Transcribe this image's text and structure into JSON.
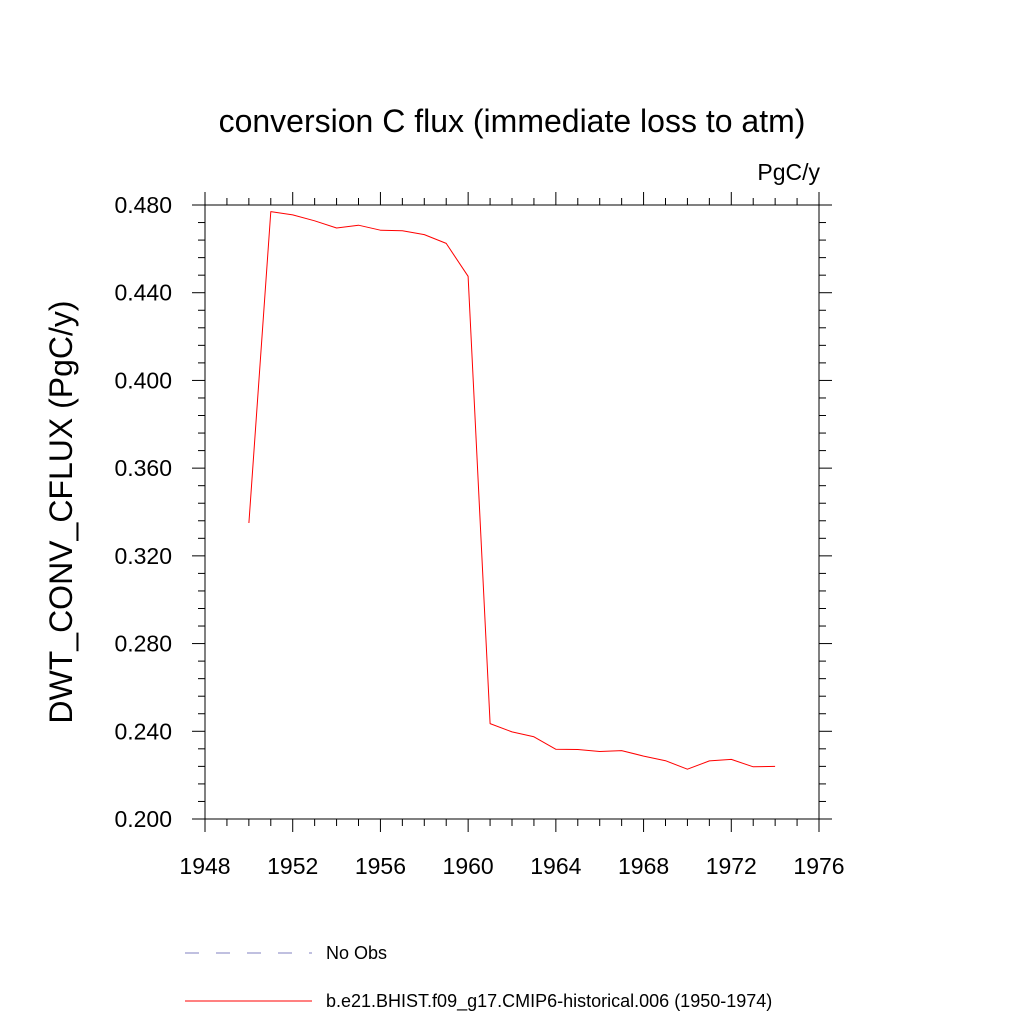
{
  "chart_data": {
    "type": "line",
    "title": "conversion C flux (immediate loss to atm)",
    "units": "PgC/y",
    "xlabel": "",
    "ylabel": "DWT_CONV_CFLUX  (PgC/y)",
    "xlim": [
      1948,
      1976
    ],
    "ylim": [
      0.2,
      0.48
    ],
    "xticks": [
      "1948",
      "1952",
      "1956",
      "1960",
      "1964",
      "1968",
      "1972",
      "1976"
    ],
    "yticks": [
      "0.200",
      "0.240",
      "0.280",
      "0.320",
      "0.360",
      "0.400",
      "0.440",
      "0.480"
    ],
    "series": [
      {
        "name": "b.e21.BHIST.f09_g17.CMIP6-historical.006 (1950-1974)",
        "color": "#ff0000",
        "style": "solid",
        "x": [
          1950,
          1951,
          1952,
          1953,
          1954,
          1955,
          1956,
          1957,
          1958,
          1959,
          1960,
          1961,
          1962,
          1963,
          1964,
          1965,
          1966,
          1967,
          1968,
          1969,
          1970,
          1971,
          1972,
          1973,
          1974
        ],
        "values": [
          0.335,
          0.477,
          0.4755,
          0.4728,
          0.4695,
          0.4708,
          0.4685,
          0.4683,
          0.4665,
          0.4625,
          0.4475,
          0.2435,
          0.2397,
          0.2375,
          0.2318,
          0.2317,
          0.2308,
          0.2312,
          0.2287,
          0.2266,
          0.2227,
          0.2265,
          0.2272,
          0.2238,
          0.224
        ]
      }
    ],
    "legend": [
      {
        "label": "No Obs",
        "color": "#8080c0",
        "style": "dashed"
      },
      {
        "label": "b.e21.BHIST.f09_g17.CMIP6-historical.006 (1950-1974)",
        "color": "#ff0000",
        "style": "solid"
      }
    ]
  }
}
